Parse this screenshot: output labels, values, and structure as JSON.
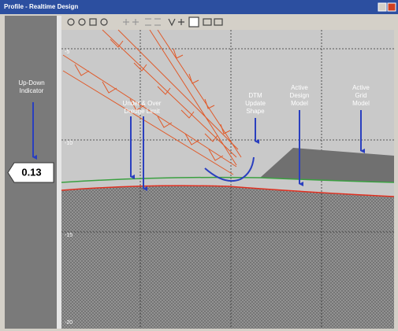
{
  "window": {
    "title": "Profile - Realtime Design"
  },
  "indicator": {
    "label": [
      "Up-Down",
      "Indicator"
    ],
    "value": "0.13"
  },
  "axis": {
    "y_labels": [
      "-5",
      "-10",
      "-15",
      "-20"
    ]
  },
  "annotations": [
    {
      "lines": [
        "Under & Over",
        "Dredge Limit"
      ]
    },
    {
      "lines": [
        "DTM",
        "Update",
        "Shape"
      ]
    },
    {
      "lines": [
        "Active",
        "Design",
        "Model"
      ]
    },
    {
      "lines": [
        "Active",
        "Grid",
        "Model"
      ]
    }
  ]
}
